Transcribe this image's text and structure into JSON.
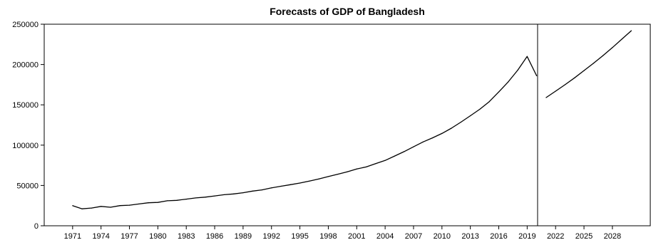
{
  "chart_data": {
    "type": "line",
    "title": "Forecasts of GDP of Bangladesh",
    "xlabel": "",
    "ylabel": "",
    "xlim": [
      1968,
      2032
    ],
    "ylim": [
      0,
      250000
    ],
    "grid": false,
    "yticks": [
      0,
      50000,
      100000,
      150000,
      200000,
      250000
    ],
    "ytick_labels": [
      "0",
      "50000",
      "100000",
      "150000",
      "200000",
      "250000"
    ],
    "xticks": [
      1971,
      1974,
      1977,
      1980,
      1983,
      1986,
      1989,
      1992,
      1995,
      1998,
      2001,
      2004,
      2007,
      2010,
      2013,
      2016,
      2019,
      2022,
      2025,
      2028
    ],
    "xtick_labels": [
      "1971",
      "1974",
      "1977",
      "1980",
      "1983",
      "1986",
      "1989",
      "1992",
      "1995",
      "1998",
      "2001",
      "2004",
      "2007",
      "2010",
      "2013",
      "2016",
      "2019",
      "2022",
      "2025",
      "2028"
    ],
    "divider_x": 2020.1,
    "series": [
      {
        "x": [
          1971,
          1972,
          1973,
          1974,
          1975,
          1976,
          1977,
          1978,
          1979,
          1980,
          1981,
          1982,
          1983,
          1984,
          1985,
          1986,
          1987,
          1988,
          1989,
          1990,
          1991,
          1992,
          1993,
          1994,
          1995,
          1996,
          1997,
          1998,
          1999,
          2000,
          2001,
          2002,
          2003,
          2004,
          2005,
          2006,
          2007,
          2008,
          2009,
          2010,
          2011,
          2012,
          2013,
          2014,
          2015,
          2016,
          2017,
          2018,
          2019,
          2020
        ],
        "values": [
          25000,
          21000,
          22000,
          24000,
          23000,
          25000,
          25500,
          27000,
          28500,
          29000,
          31000,
          31500,
          33000,
          34500,
          35500,
          37000,
          38500,
          39500,
          41000,
          43000,
          44500,
          47000,
          49000,
          51000,
          53000,
          55500,
          58000,
          61000,
          64000,
          67000,
          70500,
          73000,
          77000,
          81000,
          86500,
          92000,
          98000,
          104000,
          109000,
          114500,
          121000,
          128500,
          136500,
          144500,
          154000,
          166000,
          178500,
          193000,
          210000,
          186000
        ]
      },
      {
        "x": [
          2021,
          2022,
          2023,
          2024,
          2025,
          2026,
          2027,
          2028,
          2029,
          2030
        ],
        "values": [
          159000,
          167000,
          175000,
          183500,
          192500,
          201500,
          211000,
          221000,
          231500,
          242000
        ]
      }
    ]
  }
}
